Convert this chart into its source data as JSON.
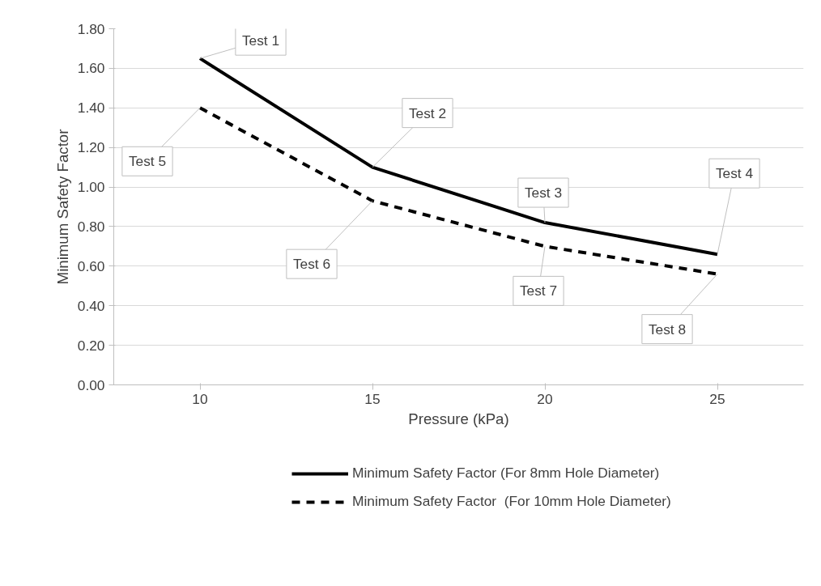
{
  "chart_data": {
    "type": "line",
    "xlabel": "Pressure (kPa)",
    "ylabel": "Minimum Safety Factor",
    "categories": [
      "10",
      "15",
      "20",
      "25"
    ],
    "series": [
      {
        "name": "Minimum Safety Factor (For 8mm Hole Diameter)",
        "color": "#000000",
        "values": [
          1.65,
          1.1,
          0.82,
          0.66
        ],
        "line_style": "solid"
      },
      {
        "name": "Minimum Safety Factor  (For 10mm Hole Diameter)",
        "color": "#000000",
        "values": [
          1.4,
          0.93,
          0.7,
          0.56
        ],
        "line_style": "dashed"
      }
    ],
    "ylim": [
      0,
      1.8
    ],
    "yticks": [
      {
        "value": 0,
        "label": "0.00"
      },
      {
        "value": 0.2,
        "label": "0.20"
      },
      {
        "value": 0.4,
        "label": "0.40"
      },
      {
        "value": 0.6,
        "label": "0.60"
      },
      {
        "value": 0.8,
        "label": "0.80"
      },
      {
        "value": 1.0,
        "label": "1.00"
      },
      {
        "value": 1.2,
        "label": "1.20"
      },
      {
        "value": 1.4,
        "label": "1.40"
      },
      {
        "value": 1.6,
        "label": "1.60"
      },
      {
        "value": 1.8,
        "label": "1.80"
      }
    ],
    "grid": "y",
    "legend": "bottom",
    "marker": "none",
    "annotations": [
      {
        "text": "Test 1",
        "x": "10",
        "y": 1.65
      },
      {
        "text": "Test 2",
        "x": "15",
        "y": 1.1
      },
      {
        "text": "Test 3",
        "x": "20",
        "y": 0.82
      },
      {
        "text": "Test 4",
        "x": "25",
        "y": 0.66
      },
      {
        "text": "Test 5",
        "x": "10",
        "y": 1.4
      },
      {
        "text": "Test 6",
        "x": "15",
        "y": 0.93
      },
      {
        "text": "Test 7",
        "x": "20",
        "y": 0.7
      },
      {
        "text": "Test 8",
        "x": "25",
        "y": 0.56
      }
    ]
  }
}
